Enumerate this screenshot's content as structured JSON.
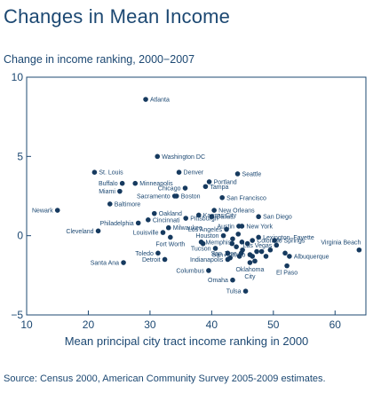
{
  "title": "Changes in Mean Income",
  "chart_data": {
    "type": "scatter",
    "title": "Changes in Mean Income",
    "subtitle": "Change in income ranking, 2000−2007",
    "xlabel": "Mean principal city tract income ranking in 2000",
    "ylabel": "",
    "xlim": [
      10,
      65
    ],
    "ylim": [
      -5,
      10
    ],
    "xticks": [
      10,
      20,
      30,
      40,
      50,
      60
    ],
    "yticks": [
      10,
      5,
      0,
      -5
    ],
    "grid": false,
    "marker_color": "#163a5f",
    "points": [
      {
        "x": 29.3,
        "y": 8.6,
        "label": "Atlanta"
      },
      {
        "x": 31.2,
        "y": 5.0,
        "label": "Washington DC"
      },
      {
        "x": 34.7,
        "y": 4.0,
        "label": "Denver"
      },
      {
        "x": 44.2,
        "y": 3.9,
        "label": "Seattle"
      },
      {
        "x": 21.0,
        "y": 4.0,
        "label": "St. Louis"
      },
      {
        "x": 27.6,
        "y": 3.3,
        "label": "Minneapolis"
      },
      {
        "x": 25.5,
        "y": 3.3,
        "label": "Buffalo"
      },
      {
        "x": 25.1,
        "y": 2.8,
        "label": "Miami"
      },
      {
        "x": 39.6,
        "y": 3.4,
        "label": "Portland"
      },
      {
        "x": 39.0,
        "y": 3.1,
        "label": "Tampa"
      },
      {
        "x": 35.7,
        "y": 3.0,
        "label": "Chicago"
      },
      {
        "x": 34.0,
        "y": 2.5,
        "label": "Sacramento"
      },
      {
        "x": 34.3,
        "y": 2.5,
        "label": "Boston"
      },
      {
        "x": 41.7,
        "y": 2.4,
        "label": "San Francisco"
      },
      {
        "x": 23.5,
        "y": 2.0,
        "label": "Baltimore"
      },
      {
        "x": 15.0,
        "y": 1.6,
        "label": "Newark"
      },
      {
        "x": 40.4,
        "y": 1.6,
        "label": "New Orleans"
      },
      {
        "x": 30.7,
        "y": 1.4,
        "label": "Oakland"
      },
      {
        "x": 37.9,
        "y": 1.3,
        "label": "Kansas City"
      },
      {
        "x": 40.0,
        "y": 1.2,
        "label": "Dallas"
      },
      {
        "x": 47.6,
        "y": 1.2,
        "label": "San Diego"
      },
      {
        "x": 29.7,
        "y": 1.0,
        "label": "Cincinnati"
      },
      {
        "x": 35.8,
        "y": 1.1,
        "label": "Pittsburgh"
      },
      {
        "x": 28.1,
        "y": 0.8,
        "label": "Philadelphia"
      },
      {
        "x": 44.4,
        "y": 0.6,
        "label": "Austin"
      },
      {
        "x": 44.9,
        "y": 0.6,
        "label": "New York"
      },
      {
        "x": 33.0,
        "y": 0.5,
        "label": "Milwaukee"
      },
      {
        "x": 42.4,
        "y": 0.4,
        "label": "Los Angeles"
      },
      {
        "x": 21.6,
        "y": 0.3,
        "label": "Cleveland"
      },
      {
        "x": 32.1,
        "y": 0.2,
        "label": "Louisville"
      },
      {
        "x": 41.9,
        "y": 0.0,
        "label": "Houston"
      },
      {
        "x": 47.6,
        "y": -0.1,
        "label": "Lexington–Fayette"
      },
      {
        "x": 46.6,
        "y": -0.3,
        "label": "Colorado Springs"
      },
      {
        "x": 33.3,
        "y": -0.1,
        "label": "Fort Worth"
      },
      {
        "x": 38.3,
        "y": -0.4,
        "label": "Memphis"
      },
      {
        "x": 50.5,
        "y": -0.6,
        "label": "Las Vegas"
      },
      {
        "x": 63.9,
        "y": -0.9,
        "label": "Virginia Beach"
      },
      {
        "x": 40.6,
        "y": -0.8,
        "label": "Tucson"
      },
      {
        "x": 31.3,
        "y": -1.1,
        "label": "Toledo"
      },
      {
        "x": 44.8,
        "y": -1.1,
        "label": "San Jose"
      },
      {
        "x": 46.2,
        "y": -1.2,
        "label": "San Antonio"
      },
      {
        "x": 52.6,
        "y": -1.3,
        "label": "Albuquerque"
      },
      {
        "x": 32.4,
        "y": -1.5,
        "label": "Detroit"
      },
      {
        "x": 42.6,
        "y": -1.5,
        "label": "Indianapolis"
      },
      {
        "x": 25.7,
        "y": -1.7,
        "label": "Santa Ana"
      },
      {
        "x": 46.2,
        "y": -1.7,
        "label": "Oklahoma City"
      },
      {
        "x": 52.2,
        "y": -1.9,
        "label": "El Paso"
      },
      {
        "x": 39.5,
        "y": -2.2,
        "label": "Columbus"
      },
      {
        "x": 43.4,
        "y": -2.8,
        "label": "Omaha"
      },
      {
        "x": 45.5,
        "y": -3.5,
        "label": "Tulsa"
      },
      {
        "x": 42.6,
        "y": -1.1
      },
      {
        "x": 43.3,
        "y": -0.5
      },
      {
        "x": 43.0,
        "y": -1.4
      },
      {
        "x": 44.0,
        "y": -0.7
      },
      {
        "x": 44.5,
        "y": -1.3
      },
      {
        "x": 45.0,
        "y": -0.9
      },
      {
        "x": 45.8,
        "y": -0.5
      },
      {
        "x": 46.6,
        "y": -1.3
      },
      {
        "x": 47.3,
        "y": -1.0
      },
      {
        "x": 48.1,
        "y": -1.0
      },
      {
        "x": 48.8,
        "y": -1.3
      },
      {
        "x": 49.5,
        "y": -0.9
      },
      {
        "x": 50.2,
        "y": -0.3
      },
      {
        "x": 51.9,
        "y": -1.1
      },
      {
        "x": 43.4,
        "y": -0.2
      },
      {
        "x": 44.9,
        "y": -0.4
      },
      {
        "x": 47.0,
        "y": -1.6
      },
      {
        "x": 38.6,
        "y": -0.5
      },
      {
        "x": 44.3,
        "y": 0.1
      }
    ]
  },
  "source": "Source: Census 2000, American Community Survey 2005-2009 estimates."
}
